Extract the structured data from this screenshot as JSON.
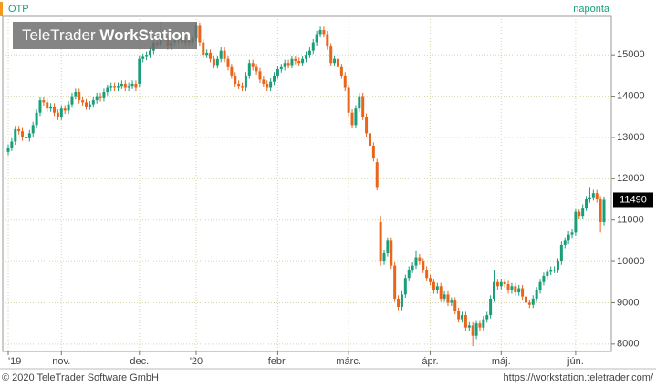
{
  "chart_data": {
    "type": "candlestick",
    "title": "OTP",
    "subtitle": "naponta",
    "watermark": [
      "TeleTrader",
      "WorkStation"
    ],
    "up_color": "#1a9e7a",
    "down_color": "#e8651a",
    "grid": true,
    "ylim": [
      7820,
      15930
    ],
    "yticks": [
      8000,
      9000,
      10000,
      11000,
      12000,
      13000,
      14000,
      15000
    ],
    "categories": [
      "'19",
      null,
      null,
      null,
      null,
      null,
      null,
      null,
      null,
      null,
      null,
      null,
      null,
      null,
      null,
      "nov.",
      null,
      null,
      null,
      null,
      null,
      null,
      null,
      null,
      null,
      null,
      null,
      null,
      null,
      null,
      null,
      null,
      null,
      null,
      null,
      null,
      null,
      "dec.",
      null,
      null,
      null,
      null,
      null,
      null,
      null,
      null,
      null,
      null,
      null,
      null,
      null,
      null,
      null,
      "'20",
      null,
      null,
      null,
      null,
      null,
      null,
      null,
      null,
      null,
      null,
      null,
      null,
      null,
      null,
      null,
      null,
      null,
      null,
      null,
      null,
      null,
      null,
      "febr.",
      null,
      null,
      null,
      null,
      null,
      null,
      null,
      null,
      null,
      null,
      null,
      null,
      null,
      null,
      null,
      null,
      null,
      null,
      null,
      "márc.",
      null,
      null,
      null,
      null,
      null,
      null,
      null,
      null,
      null,
      null,
      null,
      null,
      null,
      null,
      null,
      null,
      null,
      null,
      null,
      null,
      null,
      null,
      "ápr.",
      null,
      null,
      null,
      null,
      null,
      null,
      null,
      null,
      null,
      null,
      null,
      null,
      null,
      null,
      null,
      null,
      null,
      null,
      null,
      "máj.",
      null,
      null,
      null,
      null,
      null,
      null,
      null,
      null,
      null,
      null,
      null,
      null,
      null,
      null,
      null,
      null,
      null,
      null,
      null,
      null,
      "jún.",
      null,
      null,
      null,
      null,
      null,
      null,
      null,
      null
    ],
    "open": [
      12650,
      12750,
      12900,
      13200,
      13150,
      13000,
      12980,
      13100,
      13300,
      13600,
      13900,
      13850,
      13700,
      13750,
      13600,
      13500,
      13700,
      13650,
      13800,
      14000,
      14100,
      13900,
      13850,
      13750,
      13800,
      13900,
      14000,
      13950,
      14100,
      14200,
      14250,
      14200,
      14250,
      14300,
      14200,
      14250,
      14300,
      14300,
      14900,
      14950,
      15000,
      15100,
      15300,
      15250,
      15500,
      15400,
      15200,
      15300,
      15350,
      15400,
      15300,
      15350,
      15300,
      15400,
      15700,
      15300,
      15000,
      15050,
      14900,
      14750,
      14900,
      15100,
      14900,
      14700,
      14500,
      14300,
      14250,
      14200,
      14500,
      14800,
      14700,
      14600,
      14400,
      14300,
      14200,
      14350,
      14500,
      14650,
      14700,
      14800,
      14750,
      14900,
      14850,
      14800,
      14900,
      15000,
      15100,
      15300,
      15500,
      15600,
      15500,
      15200,
      14800,
      14900,
      14700,
      14500,
      14200,
      13600,
      13300,
      13700,
      14000,
      13500,
      13100,
      12800,
      12400,
      10950,
      10000,
      10200,
      10500,
      9900,
      9100,
      8900,
      9200,
      9600,
      9800,
      9900,
      10100,
      10000,
      9800,
      9600,
      9500,
      9300,
      9400,
      9100,
      9200,
      9000,
      9050,
      8800,
      8600,
      8700,
      8400,
      8450,
      8200,
      8500,
      8400,
      8600,
      8700,
      9100,
      9500,
      9400,
      9500,
      9450,
      9300,
      9400,
      9250,
      9350,
      9150,
      9000,
      8950,
      9100,
      9300,
      9500,
      9650,
      9750,
      9800,
      9800,
      10000,
      10400,
      10500,
      10650,
      10700,
      11200,
      11100,
      11300,
      11500,
      11550,
      11650,
      11500,
      10950
    ],
    "high": [
      12830,
      12980,
      13280,
      13280,
      13230,
      13080,
      13180,
      13380,
      13680,
      13980,
      13980,
      13930,
      13830,
      13830,
      13680,
      13780,
      13780,
      13880,
      14080,
      14180,
      14180,
      13980,
      13930,
      13880,
      13980,
      14080,
      14080,
      14180,
      14280,
      14330,
      14330,
      14330,
      14380,
      14380,
      14330,
      14380,
      14380,
      14980,
      15030,
      15080,
      15180,
      15380,
      15380,
      15800,
      15580,
      15480,
      15380,
      15430,
      15480,
      15480,
      15430,
      15430,
      15480,
      15780,
      15780,
      15380,
      15130,
      15130,
      14980,
      14980,
      15180,
      15180,
      14980,
      14780,
      14580,
      14380,
      14330,
      14580,
      14880,
      14880,
      14780,
      14680,
      14480,
      14380,
      14430,
      14580,
      14730,
      14780,
      14880,
      14880,
      14980,
      14980,
      14930,
      14980,
      15080,
      15180,
      15380,
      15580,
      15680,
      15680,
      15580,
      15280,
      14980,
      14980,
      14780,
      14580,
      14280,
      13680,
      13780,
      14080,
      14080,
      13580,
      13180,
      12880,
      12480,
      11100,
      10280,
      10580,
      10580,
      9980,
      9180,
      9280,
      9680,
      9880,
      9980,
      10250,
      10180,
      10080,
      9880,
      9680,
      9580,
      9480,
      9480,
      9280,
      9280,
      9130,
      9130,
      8880,
      8780,
      8780,
      8530,
      8530,
      8580,
      8580,
      8680,
      8780,
      9180,
      9800,
      9580,
      9580,
      9580,
      9530,
      9480,
      9480,
      9430,
      9430,
      9230,
      9080,
      9180,
      9380,
      9580,
      9730,
      9830,
      9880,
      9880,
      10080,
      10480,
      10580,
      10730,
      10780,
      11280,
      11280,
      11380,
      11580,
      11800,
      11730,
      11730,
      11580,
      11570
    ],
    "low": [
      12570,
      12670,
      12820,
      13070,
      12920,
      12900,
      12900,
      13020,
      13220,
      13520,
      13770,
      13620,
      13620,
      13520,
      13420,
      13420,
      13570,
      13570,
      13720,
      13920,
      13820,
      13770,
      13670,
      13670,
      13720,
      13820,
      13870,
      13870,
      14020,
      14120,
      14120,
      14120,
      14170,
      14120,
      14120,
      14170,
      14120,
      14220,
      14820,
      14870,
      14920,
      15020,
      15170,
      15170,
      15320,
      15120,
      15120,
      15220,
      15270,
      15220,
      15220,
      15220,
      15220,
      15320,
      15220,
      14920,
      14920,
      14820,
      14670,
      14670,
      14820,
      14820,
      14620,
      14420,
      14220,
      14170,
      14120,
      14120,
      14420,
      14620,
      14520,
      14320,
      14220,
      14120,
      14120,
      14270,
      14420,
      14570,
      14620,
      14670,
      14670,
      14770,
      14720,
      14720,
      14820,
      14920,
      15020,
      15220,
      15420,
      15420,
      15120,
      14720,
      14720,
      14620,
      14420,
      14120,
      13520,
      13220,
      13220,
      13620,
      13420,
      13020,
      12720,
      12420,
      11720,
      9900,
      9920,
      10120,
      9820,
      9020,
      8820,
      8820,
      9120,
      9520,
      9720,
      9820,
      9920,
      9720,
      9520,
      9420,
      9220,
      9220,
      9020,
      9020,
      8920,
      8920,
      8720,
      8520,
      8520,
      8320,
      8320,
      7950,
      8120,
      8320,
      8320,
      8520,
      8620,
      9020,
      9320,
      9320,
      9370,
      9220,
      9220,
      9170,
      9170,
      9070,
      8920,
      8870,
      8870,
      9020,
      9220,
      9420,
      9570,
      9670,
      9720,
      9720,
      9920,
      10320,
      10420,
      10570,
      10620,
      11020,
      11020,
      11220,
      11420,
      11470,
      11420,
      10700,
      10870
    ],
    "close": [
      12750,
      12900,
      13200,
      13150,
      13000,
      12980,
      13100,
      13300,
      13600,
      13900,
      13850,
      13700,
      13750,
      13600,
      13500,
      13700,
      13650,
      13800,
      14000,
      14100,
      13900,
      13850,
      13750,
      13800,
      13900,
      14000,
      13950,
      14100,
      14200,
      14250,
      14200,
      14250,
      14300,
      14200,
      14250,
      14300,
      14200,
      14900,
      14950,
      15000,
      15100,
      15300,
      15250,
      15500,
      15400,
      15200,
      15300,
      15350,
      15400,
      15300,
      15350,
      15300,
      15400,
      15700,
      15300,
      15000,
      15050,
      14900,
      14750,
      14900,
      15100,
      14900,
      14700,
      14500,
      14300,
      14250,
      14200,
      14500,
      14800,
      14700,
      14600,
      14400,
      14300,
      14200,
      14350,
      14500,
      14650,
      14700,
      14800,
      14750,
      14900,
      14850,
      14800,
      14900,
      15000,
      15100,
      15300,
      15500,
      15600,
      15500,
      15200,
      14800,
      14900,
      14700,
      14500,
      14200,
      13600,
      13300,
      13700,
      14000,
      13500,
      13100,
      12800,
      12500,
      11800,
      10000,
      10200,
      10500,
      9900,
      9100,
      8900,
      9200,
      9600,
      9800,
      9900,
      10100,
      10000,
      9800,
      9600,
      9500,
      9300,
      9400,
      9100,
      9200,
      9000,
      9050,
      8800,
      8600,
      8700,
      8400,
      8450,
      8200,
      8500,
      8400,
      8600,
      8700,
      9100,
      9500,
      9400,
      9500,
      9450,
      9300,
      9400,
      9250,
      9350,
      9150,
      9000,
      8950,
      9100,
      9300,
      9500,
      9650,
      9750,
      9800,
      9800,
      10000,
      10400,
      10500,
      10650,
      10700,
      11200,
      11100,
      11300,
      11500,
      11550,
      11650,
      11500,
      10950,
      11490
    ]
  },
  "footer": {
    "copyright": "© 2020 TeleTrader Software GmbH",
    "url": "https://workstation.teletrader.com/"
  }
}
